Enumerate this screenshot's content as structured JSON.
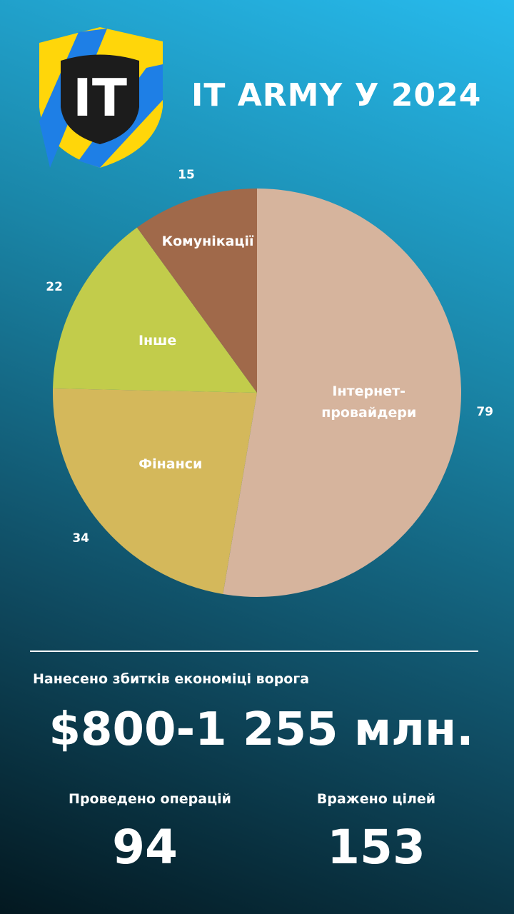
{
  "header": {
    "logo": "IT",
    "title": "IT ARMY У 2024"
  },
  "chart_data": {
    "type": "pie",
    "categories": [
      "Інтернет-провайдери",
      "Фінанси",
      "Інше",
      "Комунікації"
    ],
    "values": [
      79,
      34,
      22,
      15
    ],
    "colors": [
      "#d6b49d",
      "#d4b85b",
      "#c2cc4b",
      "#a0694a"
    ],
    "start_angle": 0,
    "direction": "clockwise"
  },
  "stats": {
    "damage_label": "Нанесено збитків економіці ворога",
    "damage_value": "$800-1 255 млн.",
    "operations_label": "Проведено операцій",
    "operations_value": "94",
    "targets_label": "Вражено цілей",
    "targets_value": "153"
  }
}
